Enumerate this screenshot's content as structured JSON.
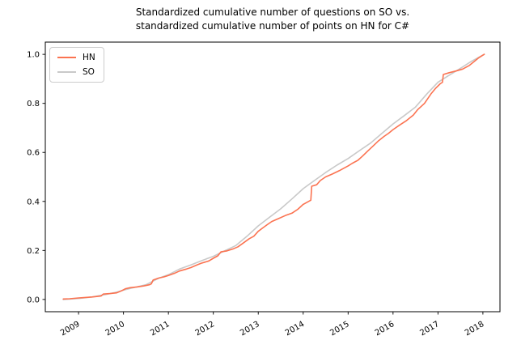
{
  "title": {
    "line1": "Standardized cumulative number of questions on SO vs.",
    "line2": "standardized cumulative number of points on HN for C#"
  },
  "legend": {
    "items": [
      {
        "label": "HN",
        "color": "#fb7351"
      },
      {
        "label": "SO",
        "color": "#c9c9c9"
      }
    ]
  },
  "chart_data": {
    "type": "line",
    "title": "Standardized cumulative number of questions on SO vs. standardized cumulative number of points on HN for C#",
    "xlabel": "",
    "ylabel": "",
    "grid": false,
    "legend_position": "upper left",
    "xlim": [
      2008.26,
      2018.38
    ],
    "ylim": [
      -0.05,
      1.05
    ],
    "x_ticks": [
      {
        "label": "2009",
        "value": 2009
      },
      {
        "label": "2010",
        "value": 2010
      },
      {
        "label": "2011",
        "value": 2011
      },
      {
        "label": "2012",
        "value": 2012
      },
      {
        "label": "2013",
        "value": 2013
      },
      {
        "label": "2014",
        "value": 2014
      },
      {
        "label": "2015",
        "value": 2015
      },
      {
        "label": "2016",
        "value": 2016
      },
      {
        "label": "2017",
        "value": 2017
      },
      {
        "label": "2018",
        "value": 2018
      }
    ],
    "y_ticks": [
      {
        "label": "0.0",
        "value": 0.0
      },
      {
        "label": "0.2",
        "value": 0.2
      },
      {
        "label": "0.4",
        "value": 0.4
      },
      {
        "label": "0.6",
        "value": 0.6
      },
      {
        "label": "0.8",
        "value": 0.8
      },
      {
        "label": "1.0",
        "value": 1.0
      }
    ],
    "series": [
      {
        "name": "HN",
        "color": "#fb7351",
        "points": [
          [
            2008.66,
            0.002
          ],
          [
            2008.8,
            0.003
          ],
          [
            2009.0,
            0.006
          ],
          [
            2009.15,
            0.008
          ],
          [
            2009.3,
            0.01
          ],
          [
            2009.45,
            0.013
          ],
          [
            2009.5,
            0.014
          ],
          [
            2009.55,
            0.022
          ],
          [
            2009.7,
            0.024
          ],
          [
            2009.85,
            0.027
          ],
          [
            2009.95,
            0.035
          ],
          [
            2010.05,
            0.044
          ],
          [
            2010.15,
            0.048
          ],
          [
            2010.3,
            0.051
          ],
          [
            2010.45,
            0.055
          ],
          [
            2010.58,
            0.06
          ],
          [
            2010.62,
            0.064
          ],
          [
            2010.66,
            0.079
          ],
          [
            2010.78,
            0.087
          ],
          [
            2010.9,
            0.092
          ],
          [
            2011.0,
            0.098
          ],
          [
            2011.15,
            0.108
          ],
          [
            2011.25,
            0.116
          ],
          [
            2011.4,
            0.124
          ],
          [
            2011.5,
            0.13
          ],
          [
            2011.65,
            0.142
          ],
          [
            2011.75,
            0.149
          ],
          [
            2011.9,
            0.157
          ],
          [
            2012.0,
            0.168
          ],
          [
            2012.1,
            0.178
          ],
          [
            2012.17,
            0.194
          ],
          [
            2012.3,
            0.198
          ],
          [
            2012.45,
            0.207
          ],
          [
            2012.55,
            0.215
          ],
          [
            2012.65,
            0.228
          ],
          [
            2012.8,
            0.248
          ],
          [
            2012.9,
            0.258
          ],
          [
            2013.0,
            0.278
          ],
          [
            2013.1,
            0.292
          ],
          [
            2013.2,
            0.305
          ],
          [
            2013.3,
            0.318
          ],
          [
            2013.45,
            0.33
          ],
          [
            2013.6,
            0.342
          ],
          [
            2013.75,
            0.352
          ],
          [
            2013.88,
            0.368
          ],
          [
            2014.0,
            0.388
          ],
          [
            2014.1,
            0.398
          ],
          [
            2014.17,
            0.405
          ],
          [
            2014.19,
            0.462
          ],
          [
            2014.3,
            0.468
          ],
          [
            2014.38,
            0.485
          ],
          [
            2014.5,
            0.5
          ],
          [
            2014.65,
            0.512
          ],
          [
            2014.8,
            0.525
          ],
          [
            2014.9,
            0.535
          ],
          [
            2015.0,
            0.545
          ],
          [
            2015.1,
            0.556
          ],
          [
            2015.22,
            0.568
          ],
          [
            2015.32,
            0.585
          ],
          [
            2015.45,
            0.608
          ],
          [
            2015.55,
            0.625
          ],
          [
            2015.68,
            0.648
          ],
          [
            2015.8,
            0.665
          ],
          [
            2015.9,
            0.678
          ],
          [
            2016.0,
            0.693
          ],
          [
            2016.15,
            0.712
          ],
          [
            2016.3,
            0.73
          ],
          [
            2016.45,
            0.752
          ],
          [
            2016.55,
            0.775
          ],
          [
            2016.7,
            0.8
          ],
          [
            2016.85,
            0.84
          ],
          [
            2016.95,
            0.862
          ],
          [
            2017.05,
            0.88
          ],
          [
            2017.1,
            0.886
          ],
          [
            2017.12,
            0.918
          ],
          [
            2017.25,
            0.925
          ],
          [
            2017.4,
            0.932
          ],
          [
            2017.55,
            0.94
          ],
          [
            2017.7,
            0.955
          ],
          [
            2017.8,
            0.97
          ],
          [
            2017.9,
            0.985
          ],
          [
            2018.03,
            1.0
          ]
        ]
      },
      {
        "name": "SO",
        "color": "#c9c9c9",
        "points": [
          [
            2008.66,
            0.0
          ],
          [
            2009.0,
            0.004
          ],
          [
            2009.3,
            0.01
          ],
          [
            2009.6,
            0.02
          ],
          [
            2009.85,
            0.03
          ],
          [
            2010.0,
            0.038
          ],
          [
            2010.2,
            0.047
          ],
          [
            2010.5,
            0.06
          ],
          [
            2010.8,
            0.088
          ],
          [
            2011.0,
            0.101
          ],
          [
            2011.25,
            0.124
          ],
          [
            2011.5,
            0.141
          ],
          [
            2011.75,
            0.159
          ],
          [
            2012.0,
            0.176
          ],
          [
            2012.25,
            0.198
          ],
          [
            2012.5,
            0.22
          ],
          [
            2012.75,
            0.258
          ],
          [
            2013.0,
            0.3
          ],
          [
            2013.25,
            0.335
          ],
          [
            2013.5,
            0.37
          ],
          [
            2013.75,
            0.41
          ],
          [
            2014.0,
            0.452
          ],
          [
            2014.25,
            0.485
          ],
          [
            2014.5,
            0.518
          ],
          [
            2014.75,
            0.548
          ],
          [
            2015.0,
            0.575
          ],
          [
            2015.25,
            0.607
          ],
          [
            2015.5,
            0.638
          ],
          [
            2015.75,
            0.677
          ],
          [
            2016.0,
            0.716
          ],
          [
            2016.25,
            0.75
          ],
          [
            2016.5,
            0.785
          ],
          [
            2016.75,
            0.838
          ],
          [
            2017.0,
            0.886
          ],
          [
            2017.25,
            0.915
          ],
          [
            2017.5,
            0.943
          ],
          [
            2017.75,
            0.972
          ],
          [
            2018.03,
            1.0
          ]
        ]
      }
    ]
  }
}
